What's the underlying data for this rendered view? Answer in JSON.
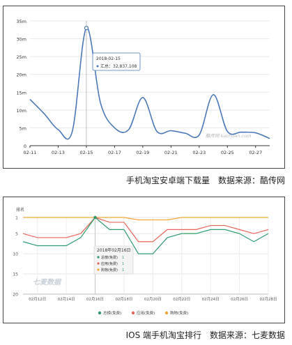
{
  "charts": {
    "android": {
      "caption": "手机淘宝安卓端下载量　数据来源：酷传网",
      "watermark": "酷传网 kuchuan.com",
      "tooltip": {
        "date": "2018-02-15",
        "label": "汇总",
        "value": "32,837,108"
      },
      "colors": {
        "line": "#4a78b8",
        "grid": "#e8e8e8"
      }
    },
    "ios": {
      "caption": "IOS 端手机淘宝排行　数据来源：七麦数据",
      "y_axis_title": "排名",
      "watermark": "七麦数据",
      "tooltip": {
        "date": "2018年02月16日",
        "rows": [
          {
            "label": "总榜(免费)",
            "value": "1"
          },
          {
            "label": "应用(免费)",
            "value": "1"
          },
          {
            "label": "购物(免费)",
            "value": "1"
          }
        ]
      }
    }
  },
  "chart_data": [
    {
      "type": "line",
      "title": "",
      "xlabel": "",
      "ylabel": "",
      "x_ticks": [
        "02-11",
        "02-13",
        "02-15",
        "02-17",
        "02-19",
        "02-21",
        "02-23",
        "02-25",
        "02-27"
      ],
      "y_ticks": [
        "0",
        "5m",
        "10m",
        "15m",
        "20m",
        "25m",
        "30m",
        "35m"
      ],
      "ylim": [
        0,
        35
      ],
      "y_unit": "m",
      "grid": true,
      "series": [
        {
          "color": "#4a78b8",
          "x": [
            "02-11",
            "02-12",
            "02-13",
            "02-14",
            "02-15",
            "02-16",
            "02-17",
            "02-18",
            "02-19",
            "02-20",
            "02-21",
            "02-22",
            "02-23",
            "02-24",
            "02-25",
            "02-26",
            "02-27",
            "02-28"
          ],
          "values": [
            13,
            9,
            4.5,
            4,
            33,
            12,
            5,
            4.5,
            13.5,
            4,
            4.2,
            3.5,
            3,
            14.3,
            4,
            3.8,
            3.6,
            2
          ]
        }
      ]
    },
    {
      "type": "line",
      "title": "",
      "xlabel": "",
      "ylabel": "排名",
      "x_ticks": [
        "02月12日",
        "02月14日",
        "02月16日",
        "02月18日",
        "02月20日",
        "02月22日",
        "02月24日",
        "02月26日",
        "02月28日"
      ],
      "y_ticks": [
        "1",
        "5",
        "10",
        "15",
        "20"
      ],
      "ylim": [
        20,
        1
      ],
      "legend_position": "bottom",
      "grid": true,
      "series": [
        {
          "name": "总榜(免费)",
          "color": "#2e9c6f",
          "x": [
            "02月11日",
            "02月12日",
            "02月13日",
            "02月14日",
            "02月15日",
            "02月16日",
            "02月17日",
            "02月18日",
            "02月19日",
            "02月20日",
            "02月21日",
            "02月22日",
            "02月23日",
            "02月24日",
            "02月25日",
            "02月26日",
            "02月27日",
            "02月28日"
          ],
          "values": [
            7,
            8,
            8,
            8,
            6,
            1,
            4,
            4,
            10,
            10,
            6,
            5,
            5,
            4,
            4,
            5,
            7,
            5
          ]
        },
        {
          "name": "应用(免费)",
          "color": "#e8645a",
          "x": [
            "02月11日",
            "02月12日",
            "02月13日",
            "02月14日",
            "02月15日",
            "02月16日",
            "02月17日",
            "02月18日",
            "02月19日",
            "02月20日",
            "02月21日",
            "02月22日",
            "02月23日",
            "02月24日",
            "02月25日",
            "02月26日",
            "02月27日",
            "02月28日"
          ],
          "values": [
            5,
            6,
            6,
            6,
            5,
            1,
            2.2,
            2.2,
            7,
            7,
            4,
            4,
            4,
            3,
            3,
            4,
            5,
            4
          ]
        },
        {
          "name": "购物(免费)",
          "color": "#f5a638",
          "x": [
            "02月11日",
            "02月12日",
            "02月13日",
            "02月14日",
            "02月15日",
            "02月16日",
            "02月17日",
            "02月18日",
            "02月19日",
            "02月20日",
            "02月21日",
            "02月22日",
            "02月23日",
            "02月24日",
            "02月25日",
            "02月26日",
            "02月27日",
            "02月28日"
          ],
          "values": [
            1,
            1,
            1,
            1,
            1,
            1,
            1,
            1,
            1.6,
            1.6,
            1.6,
            1,
            1,
            1,
            1,
            1,
            1,
            1
          ]
        }
      ]
    }
  ]
}
